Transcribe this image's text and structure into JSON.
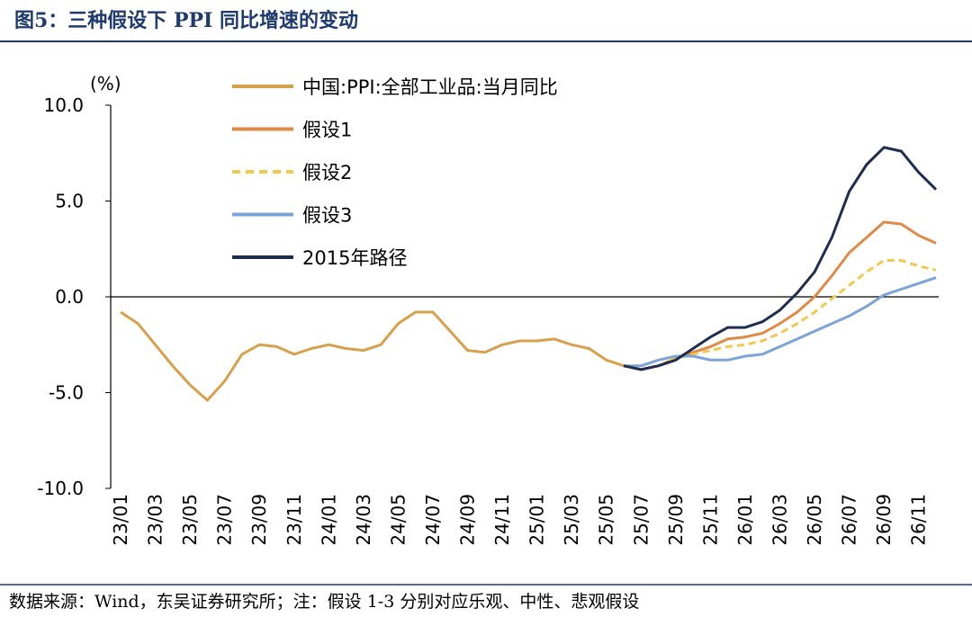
{
  "chart_data": {
    "type": "line",
    "title": "图5：三种假设下 PPI 同比增速的变动",
    "y_label": "(%)",
    "source": "数据来源：Wind，东吴证券研究所；注：假设 1-3 分别对应乐观、中性、悲观假设",
    "categories": [
      "23/01",
      null,
      "23/03",
      null,
      "23/05",
      null,
      "23/07",
      null,
      "23/09",
      null,
      "23/11",
      null,
      "24/01",
      null,
      "24/03",
      null,
      "24/05",
      null,
      "24/07",
      null,
      "24/09",
      null,
      "24/11",
      null,
      "25/01",
      null,
      "25/03",
      null,
      "25/05",
      null,
      "25/07",
      null,
      "25/09",
      null,
      "25/11",
      null,
      "26/01",
      null,
      "26/03",
      null,
      "26/05",
      null,
      "26/07",
      null,
      "26/09",
      null,
      "26/11",
      null
    ],
    "ylim": [
      -10,
      10
    ],
    "yticks": [
      {
        "value": 10,
        "label": "10.0"
      },
      {
        "value": 5,
        "label": "5.0"
      },
      {
        "value": 0,
        "label": "0.0"
      },
      {
        "value": -5,
        "label": "-5.0"
      },
      {
        "value": -10,
        "label": "-10.0"
      }
    ],
    "series": [
      {
        "name": "中国:PPI:全部工业品:当月同比",
        "color": "#d9a04b",
        "dash": false,
        "values": [
          -0.8,
          -1.4,
          -2.5,
          -3.6,
          -4.6,
          -5.4,
          -4.4,
          -3.0,
          -2.5,
          -2.6,
          -3.0,
          -2.7,
          -2.5,
          -2.7,
          -2.8,
          -2.5,
          -1.4,
          -0.8,
          -0.8,
          -1.8,
          -2.8,
          -2.9,
          -2.5,
          -2.3,
          -2.3,
          -2.2,
          -2.5,
          -2.7,
          -3.3,
          -3.6,
          null,
          null,
          null,
          null,
          null,
          null,
          null,
          null,
          null,
          null,
          null,
          null,
          null,
          null,
          null,
          null,
          null,
          null
        ]
      },
      {
        "name": "假设1",
        "color": "#e08a48",
        "dash": false,
        "values": [
          null,
          null,
          null,
          null,
          null,
          null,
          null,
          null,
          null,
          null,
          null,
          null,
          null,
          null,
          null,
          null,
          null,
          null,
          null,
          null,
          null,
          null,
          null,
          null,
          null,
          null,
          null,
          null,
          null,
          -3.6,
          -3.8,
          -3.6,
          -3.2,
          -2.9,
          -2.6,
          -2.2,
          -2.1,
          -1.9,
          -1.4,
          -0.8,
          0.0,
          1.1,
          2.3,
          3.1,
          3.9,
          3.8,
          3.2,
          2.8
        ]
      },
      {
        "name": "假设2",
        "color": "#f2c94c",
        "dash": true,
        "values": [
          null,
          null,
          null,
          null,
          null,
          null,
          null,
          null,
          null,
          null,
          null,
          null,
          null,
          null,
          null,
          null,
          null,
          null,
          null,
          null,
          null,
          null,
          null,
          null,
          null,
          null,
          null,
          null,
          null,
          -3.6,
          -3.8,
          -3.6,
          -3.2,
          -3.0,
          -2.8,
          -2.6,
          -2.5,
          -2.3,
          -1.9,
          -1.4,
          -0.8,
          -0.1,
          0.6,
          1.3,
          1.9,
          1.9,
          1.6,
          1.4
        ]
      },
      {
        "name": "假设3",
        "color": "#7ba4d8",
        "dash": false,
        "values": [
          null,
          null,
          null,
          null,
          null,
          null,
          null,
          null,
          null,
          null,
          null,
          null,
          null,
          null,
          null,
          null,
          null,
          null,
          null,
          null,
          null,
          null,
          null,
          null,
          null,
          null,
          null,
          null,
          null,
          -3.6,
          -3.6,
          -3.3,
          -3.1,
          -3.1,
          -3.3,
          -3.3,
          -3.1,
          -3.0,
          -2.6,
          -2.2,
          -1.8,
          -1.4,
          -1.0,
          -0.5,
          0.1,
          0.4,
          0.7,
          1.0
        ]
      },
      {
        "name": "2015年路径",
        "color": "#1f2d4f",
        "dash": false,
        "values": [
          null,
          null,
          null,
          null,
          null,
          null,
          null,
          null,
          null,
          null,
          null,
          null,
          null,
          null,
          null,
          null,
          null,
          null,
          null,
          null,
          null,
          null,
          null,
          null,
          null,
          null,
          null,
          null,
          null,
          -3.6,
          -3.8,
          -3.6,
          -3.3,
          -2.7,
          -2.1,
          -1.6,
          -1.6,
          -1.3,
          -0.7,
          0.2,
          1.3,
          3.1,
          5.5,
          6.9,
          7.8,
          7.6,
          6.5,
          5.6
        ]
      }
    ]
  }
}
